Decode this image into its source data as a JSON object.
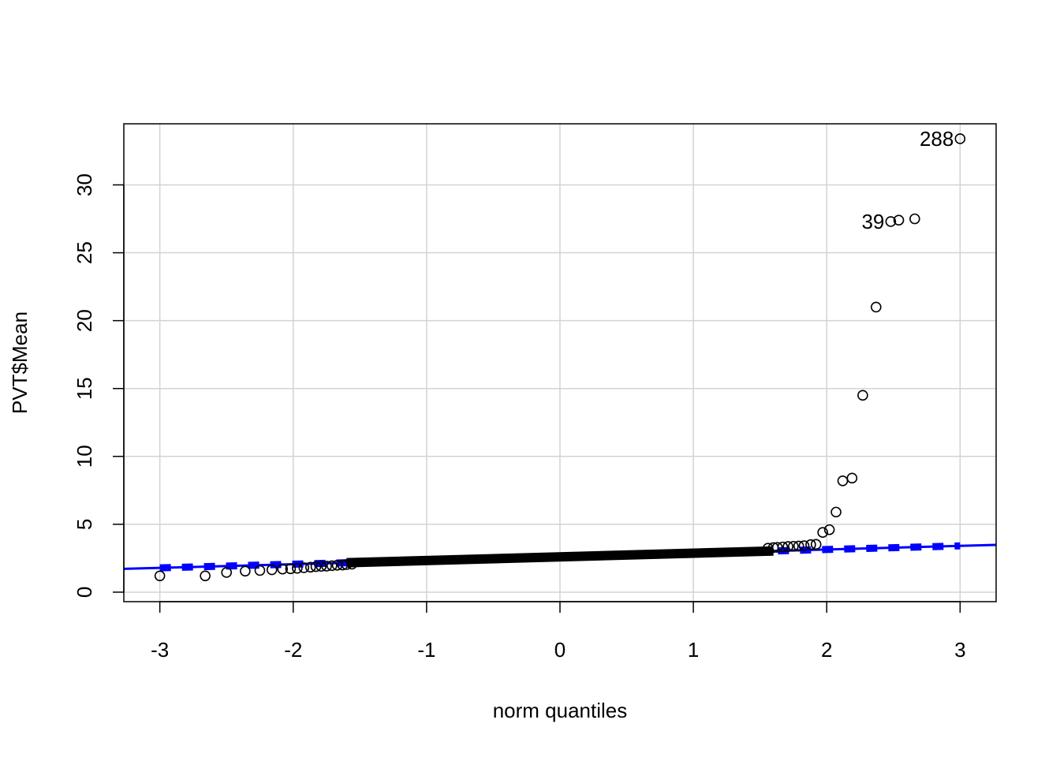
{
  "chart_data": {
    "type": "scatter",
    "title": "",
    "xlabel": "norm quantiles",
    "ylabel": "PVT$Mean",
    "xlim": [
      -3.27,
      3.27
    ],
    "ylim": [
      -0.7,
      34.5
    ],
    "x_ticks": [
      -3,
      -2,
      -1,
      0,
      1,
      2,
      3
    ],
    "y_ticks": [
      0,
      5,
      10,
      15,
      20,
      25,
      30
    ],
    "x_tick_labels": [
      "-3",
      "-2",
      "-1",
      "0",
      "1",
      "2",
      "3"
    ],
    "y_tick_labels": [
      "0",
      "5",
      "10",
      "15",
      "20",
      "25",
      "30"
    ],
    "grid": true,
    "reference_line": {
      "intercept": 2.6,
      "slope": 0.27,
      "color": "#0000ff"
    },
    "annotations": [
      {
        "label": "288",
        "x": 3.0,
        "y": 33.4
      },
      {
        "label": "39",
        "x": 2.48,
        "y": 27.3
      }
    ],
    "series": [
      {
        "marker": "open-circle",
        "color": "#000000",
        "x": [
          -3.0,
          -2.66,
          -2.5,
          -2.36,
          -2.25,
          -2.16,
          -2.08,
          -2.02,
          -1.97,
          -1.92,
          -1.87,
          -1.83,
          -1.79,
          -1.75,
          -1.71,
          -1.67,
          -1.63,
          -1.6,
          -1.56,
          1.56,
          1.6,
          1.63,
          1.67,
          1.71,
          1.75,
          1.79,
          1.83,
          1.88,
          1.92,
          1.97,
          2.02,
          2.07,
          2.12,
          2.19,
          2.27,
          2.37,
          2.48,
          2.54,
          2.66,
          3.0
        ],
        "y": [
          1.2,
          1.2,
          1.45,
          1.55,
          1.6,
          1.65,
          1.7,
          1.72,
          1.76,
          1.8,
          1.84,
          1.88,
          1.9,
          1.92,
          1.95,
          1.98,
          2.0,
          2.03,
          2.06,
          3.24,
          3.28,
          3.3,
          3.33,
          3.36,
          3.38,
          3.4,
          3.42,
          3.5,
          3.52,
          4.4,
          4.6,
          5.9,
          8.2,
          8.4,
          14.5,
          21.0,
          27.3,
          27.4,
          27.5,
          33.4
        ]
      }
    ]
  }
}
